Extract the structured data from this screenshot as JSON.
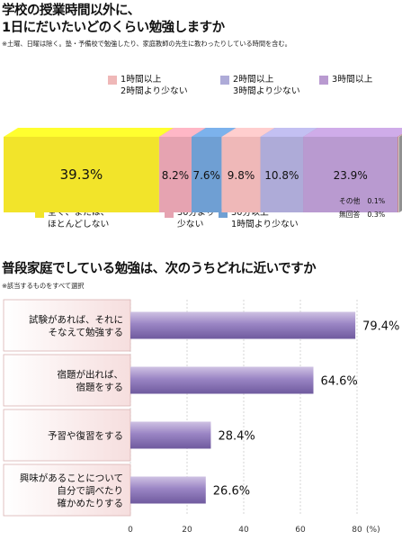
{
  "section1": {
    "title_line1": "学校の授業時間以外に、",
    "title_line2": "1日にだいたいどのくらい勉強しますか",
    "note": "※土曜、日曜は除く。塾・予備校で勉強したり、家庭教師の先生に教わったりしている時間を含む。"
  },
  "section2": {
    "title": "普段家庭でしている勉強は、次のうちどれに近いですか",
    "note": "※該当するものをすべて選択"
  },
  "chart_data": [
    {
      "type": "bar",
      "stacked": true,
      "orientation": "horizontal",
      "unit": "%",
      "categories": [
        "全く、または、ほとんどしない",
        "30分より少ない",
        "30分以上1時間より少ない",
        "1時間以上2時間より少ない",
        "2時間以上3時間より少ない",
        "3時間以上",
        "その他",
        "無回答"
      ],
      "values": [
        39.3,
        8.2,
        7.6,
        9.8,
        10.8,
        23.9,
        0.1,
        0.3
      ],
      "value_labels": [
        "39.3%",
        "8.2%",
        "7.6%",
        "9.8%",
        "10.8%",
        "23.9%",
        "",
        ""
      ],
      "legend": [
        {
          "line1": "全く、または、",
          "line2": "ほとんどしない",
          "color": "#f2e42a"
        },
        {
          "line1": "30分より",
          "line2": "少ない",
          "color": "#e6a3b1"
        },
        {
          "line1": "30分以上",
          "line2": "1時間より少ない",
          "color": "#6f9fd3"
        },
        {
          "line1": "1時間以上",
          "line2": "2時間より少ない",
          "color": "#efb8b8"
        },
        {
          "line1": "2時間以上",
          "line2": "3時間より少ない",
          "color": "#aeabd8"
        },
        {
          "line1": "3時間以上",
          "line2": "",
          "color": "#b99ad0"
        }
      ],
      "small_labels": [
        {
          "name": "その他",
          "value": "0.1%"
        },
        {
          "name": "無回答",
          "value": "0.3%"
        }
      ]
    },
    {
      "type": "bar",
      "orientation": "horizontal",
      "unit": "(%)",
      "categories": [
        {
          "line1": "試験があれば、それに",
          "line2": "そなえて勉強する",
          "line3": ""
        },
        {
          "line1": "宿題が出れば、",
          "line2": "宿題をする",
          "line3": ""
        },
        {
          "line1": "予習や復習をする",
          "line2": "",
          "line3": ""
        },
        {
          "line1": "興味があることについて",
          "line2": "自分で調べたり",
          "line3": "確かめたりする"
        }
      ],
      "values": [
        79.4,
        64.6,
        28.4,
        26.6
      ],
      "value_labels": [
        "79.4%",
        "64.6%",
        "28.4%",
        "26.6%"
      ],
      "xlim": [
        0,
        80
      ],
      "ticks": [
        "0",
        "20",
        "40",
        "60",
        "80"
      ],
      "grid": true,
      "color": "#8e78b8"
    }
  ],
  "colors": {
    "bar_dark": "#6f5a9e",
    "bar_mid": "#9a85c4",
    "bar_light": "#cfc2e3",
    "label_box": "#f6dede",
    "label_border": "#d9b3b3"
  }
}
